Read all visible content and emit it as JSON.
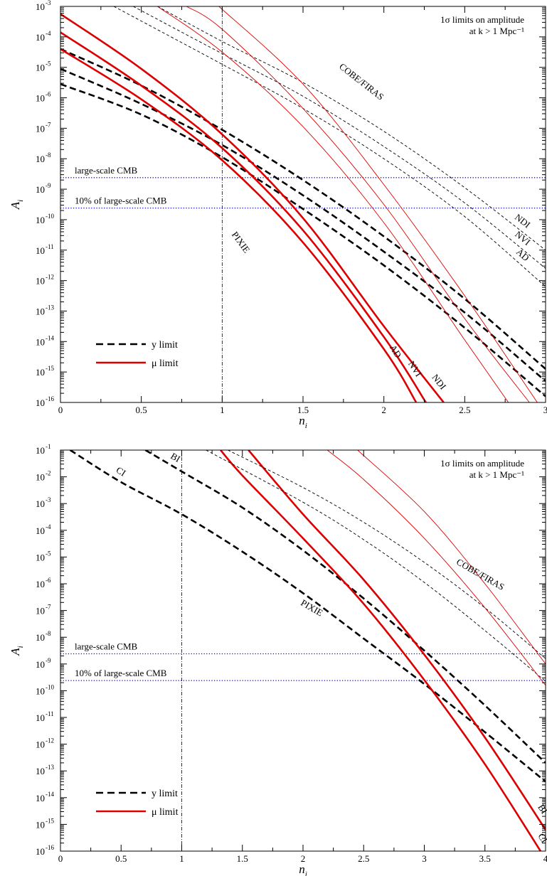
{
  "figure": {
    "background": "#ffffff"
  },
  "colors": {
    "y_limit": "#000000",
    "mu_limit": "#dd0000",
    "cmb_reference": "#0000cc",
    "axis": "#000000"
  },
  "chart_data": [
    {
      "type": "line",
      "x_title": "n",
      "x_title_subscript": "i",
      "y_title": "A",
      "y_title_subscript": "i",
      "xlim": [
        0,
        3
      ],
      "ylim_log10": [
        -16,
        -3
      ],
      "y_scale": "log",
      "x_ticks": [
        0,
        0.5,
        1,
        1.5,
        2,
        2.5,
        3
      ],
      "x_tick_labels": [
        "0",
        "0.5",
        "1",
        "1.5",
        "2",
        "2.5",
        "3"
      ],
      "y_ticks_log10": [
        -16,
        -15,
        -14,
        -13,
        -12,
        -11,
        -10,
        -9,
        -8,
        -7,
        -6,
        -5,
        -4,
        -3
      ],
      "y_tick_base": "10",
      "vertical_reference_x": 1,
      "horizontal_references": [
        {
          "label": "large-scale CMB",
          "log10_value": -8.62
        },
        {
          "label": "10% of large-scale CMB",
          "log10_value": -9.62
        }
      ],
      "info_lines": [
        "1σ limits on amplitude",
        "at k > 1 Mpc⁻¹"
      ],
      "legend": {
        "position": "bottom-left",
        "entries": [
          {
            "label": "y limit",
            "style": "dashed"
          },
          {
            "label": "μ limit",
            "style": "solid"
          }
        ]
      },
      "group_labels": [
        {
          "text": "COBE/FIRAS",
          "x": 1.85,
          "log10": -5.55,
          "angle": 38
        },
        {
          "text": "PIXIE",
          "x": 1.1,
          "log10": -10.8,
          "angle": 54
        }
      ],
      "series": [
        {
          "name": "AD",
          "limit": "y",
          "experiment": "PIXIE",
          "x": [
            0,
            0.5,
            1,
            1.5,
            2,
            2.5,
            3
          ],
          "log10": [
            -5.55,
            -6.55,
            -7.95,
            -9.65,
            -11.5,
            -13.55,
            -15.8
          ],
          "label_x": null
        },
        {
          "name": "NVI",
          "limit": "y",
          "experiment": "PIXIE",
          "x": [
            0,
            0.5,
            1,
            1.5,
            2,
            2.5,
            3
          ],
          "log10": [
            -5.05,
            -6.2,
            -7.55,
            -9.2,
            -11.05,
            -13.05,
            -15.3
          ],
          "label_x": null
        },
        {
          "name": "NDI",
          "limit": "y",
          "experiment": "PIXIE",
          "x": [
            0,
            0.5,
            1,
            1.5,
            2,
            2.5,
            3
          ],
          "log10": [
            -4.4,
            -5.6,
            -7.05,
            -8.7,
            -10.55,
            -12.6,
            -14.9
          ],
          "label_x": null
        },
        {
          "name": "AD",
          "limit": "μ",
          "experiment": "PIXIE",
          "x": [
            0,
            0.5,
            1,
            1.5,
            2,
            2.2
          ],
          "log10": [
            -4.4,
            -6.05,
            -8.05,
            -10.75,
            -14.25,
            -16.0
          ],
          "label_x": 2.03
        },
        {
          "name": "NVI",
          "limit": "μ",
          "experiment": "PIXIE",
          "x": [
            0,
            0.5,
            1,
            1.5,
            2,
            2.26
          ],
          "log10": [
            -3.85,
            -5.6,
            -7.65,
            -10.35,
            -13.85,
            -16.0
          ],
          "label_x": 2.15
        },
        {
          "name": "NDI",
          "limit": "μ",
          "experiment": "PIXIE",
          "x": [
            0,
            0.5,
            1,
            1.5,
            2,
            2.37
          ],
          "log10": [
            -3.25,
            -5.05,
            -7.2,
            -9.95,
            -13.5,
            -16.0
          ],
          "label_x": 2.3
        },
        {
          "name": "AD",
          "limit": "y",
          "experiment": "COBE/FIRAS",
          "x": [
            0.33,
            1,
            1.5,
            2,
            2.5,
            3
          ],
          "log10": [
            -3.0,
            -4.9,
            -6.35,
            -8.0,
            -9.9,
            -12.2
          ],
          "label_x": 2.82
        },
        {
          "name": "NVI",
          "limit": "y",
          "experiment": "COBE/FIRAS",
          "x": [
            0.45,
            1,
            1.5,
            2,
            2.5,
            3
          ],
          "log10": [
            -3.0,
            -4.55,
            -5.95,
            -7.6,
            -9.45,
            -11.6
          ],
          "label_x": 2.82
        },
        {
          "name": "NDI",
          "limit": "y",
          "experiment": "COBE/FIRAS",
          "x": [
            0.6,
            1,
            1.5,
            2,
            2.5,
            3
          ],
          "log10": [
            -3.0,
            -4.15,
            -5.5,
            -7.1,
            -8.95,
            -11.0
          ],
          "label_x": 2.82
        },
        {
          "name": "AD",
          "limit": "μ",
          "experiment": "COBE/FIRAS",
          "x": [
            0.6,
            1,
            1.5,
            2,
            2.5,
            2.77
          ],
          "log10": [
            -3.0,
            -4.5,
            -6.95,
            -10.1,
            -13.95,
            -16.0
          ],
          "label_x": null
        },
        {
          "name": "NVI",
          "limit": "μ",
          "experiment": "COBE/FIRAS",
          "x": [
            0.78,
            1,
            1.5,
            2,
            2.5,
            2.9
          ],
          "log10": [
            -3.0,
            -3.75,
            -6.35,
            -9.5,
            -13.25,
            -16.0
          ],
          "label_x": null
        },
        {
          "name": "NDI",
          "limit": "μ",
          "experiment": "COBE/FIRAS",
          "x": [
            0.98,
            1.5,
            2,
            2.5,
            3
          ],
          "log10": [
            -3.0,
            -5.55,
            -8.85,
            -12.5,
            -16.4
          ],
          "label_x": null
        }
      ]
    },
    {
      "type": "line",
      "x_title": "n",
      "x_title_subscript": "i",
      "y_title": "A",
      "y_title_subscript": "i",
      "xlim": [
        0,
        4
      ],
      "ylim_log10": [
        -16,
        -1
      ],
      "y_scale": "log",
      "x_ticks": [
        0,
        0.5,
        1,
        1.5,
        2,
        2.5,
        3,
        3.5,
        4
      ],
      "x_tick_labels": [
        "0",
        "0.5",
        "1",
        "1.5",
        "2",
        "2.5",
        "3",
        "3.5",
        "4"
      ],
      "y_ticks_log10": [
        -16,
        -15,
        -14,
        -13,
        -12,
        -11,
        -10,
        -9,
        -8,
        -7,
        -6,
        -5,
        -4,
        -3,
        -2,
        -1
      ],
      "y_tick_base": "10",
      "vertical_reference_x": 1,
      "horizontal_references": [
        {
          "label": "large-scale CMB",
          "log10_value": -8.62
        },
        {
          "label": "10% of large-scale CMB",
          "log10_value": -9.62
        }
      ],
      "info_lines": [
        "1σ limits on amplitude",
        "at k > 1 Mpc⁻¹"
      ],
      "legend": {
        "position": "bottom-left",
        "entries": [
          {
            "label": "y limit",
            "style": "dashed"
          },
          {
            "label": "μ limit",
            "style": "solid"
          }
        ]
      },
      "group_labels": [
        {
          "text": "COBE/FIRAS",
          "x": 3.45,
          "log10": -5.75,
          "angle": 30
        },
        {
          "text": "PIXIE",
          "x": 2.06,
          "log10": -7.0,
          "angle": 30
        }
      ],
      "series": [
        {
          "name": "CI",
          "limit": "y",
          "experiment": "PIXIE",
          "x": [
            0.08,
            0.5,
            1,
            1.5,
            2,
            2.5,
            3,
            3.5,
            4
          ],
          "log10": [
            -1.0,
            -2.2,
            -3.4,
            -4.8,
            -6.35,
            -8.05,
            -9.75,
            -11.55,
            -13.4
          ],
          "label_x": 0.45
        },
        {
          "name": "BI",
          "limit": "y",
          "experiment": "PIXIE",
          "x": [
            0.7,
            1,
            1.5,
            2,
            2.5,
            3,
            3.5,
            4
          ],
          "log10": [
            -1.0,
            -1.8,
            -3.15,
            -4.75,
            -6.55,
            -8.5,
            -10.55,
            -12.7
          ],
          "label_x": 0.9
        },
        {
          "name": "CI",
          "limit": "μ",
          "experiment": "PIXIE",
          "x": [
            1.32,
            1.5,
            2,
            2.5,
            3,
            3.5,
            4
          ],
          "log10": [
            -1.0,
            -1.95,
            -4.3,
            -6.75,
            -9.6,
            -12.75,
            -16.3
          ],
          "label_x": 3.92
        },
        {
          "name": "BI",
          "limit": "μ",
          "experiment": "PIXIE",
          "x": [
            1.55,
            2,
            2.5,
            3,
            3.5,
            4
          ],
          "log10": [
            -1.0,
            -3.4,
            -5.85,
            -8.65,
            -11.75,
            -15.2
          ],
          "label_x": 3.92
        },
        {
          "name": "",
          "limit": "y",
          "experiment": "COBE/FIRAS",
          "x": [
            1.38,
            2,
            2.5,
            3,
            3.5,
            4
          ],
          "log10": [
            -1.0,
            -2.4,
            -3.7,
            -5.2,
            -6.9,
            -8.8
          ],
          "label_x": null
        },
        {
          "name": "",
          "limit": "y",
          "experiment": "COBE/FIRAS",
          "x": [
            1.2,
            2,
            2.5,
            3,
            3.5,
            4
          ],
          "log10": [
            -1.0,
            -2.95,
            -4.35,
            -5.95,
            -7.75,
            -9.65
          ],
          "label_x": null
        },
        {
          "name": "",
          "limit": "μ",
          "experiment": "COBE/FIRAS",
          "x": [
            2.2,
            2.5,
            3,
            3.5,
            4
          ],
          "log10": [
            -1.0,
            -2.1,
            -4.3,
            -6.9,
            -9.8
          ],
          "label_x": null
        },
        {
          "name": "",
          "limit": "μ",
          "experiment": "COBE/FIRAS",
          "x": [
            2.45,
            3,
            3.5,
            4
          ],
          "log10": [
            -1.0,
            -3.3,
            -6.0,
            -9.0
          ],
          "label_x": null
        }
      ]
    }
  ]
}
